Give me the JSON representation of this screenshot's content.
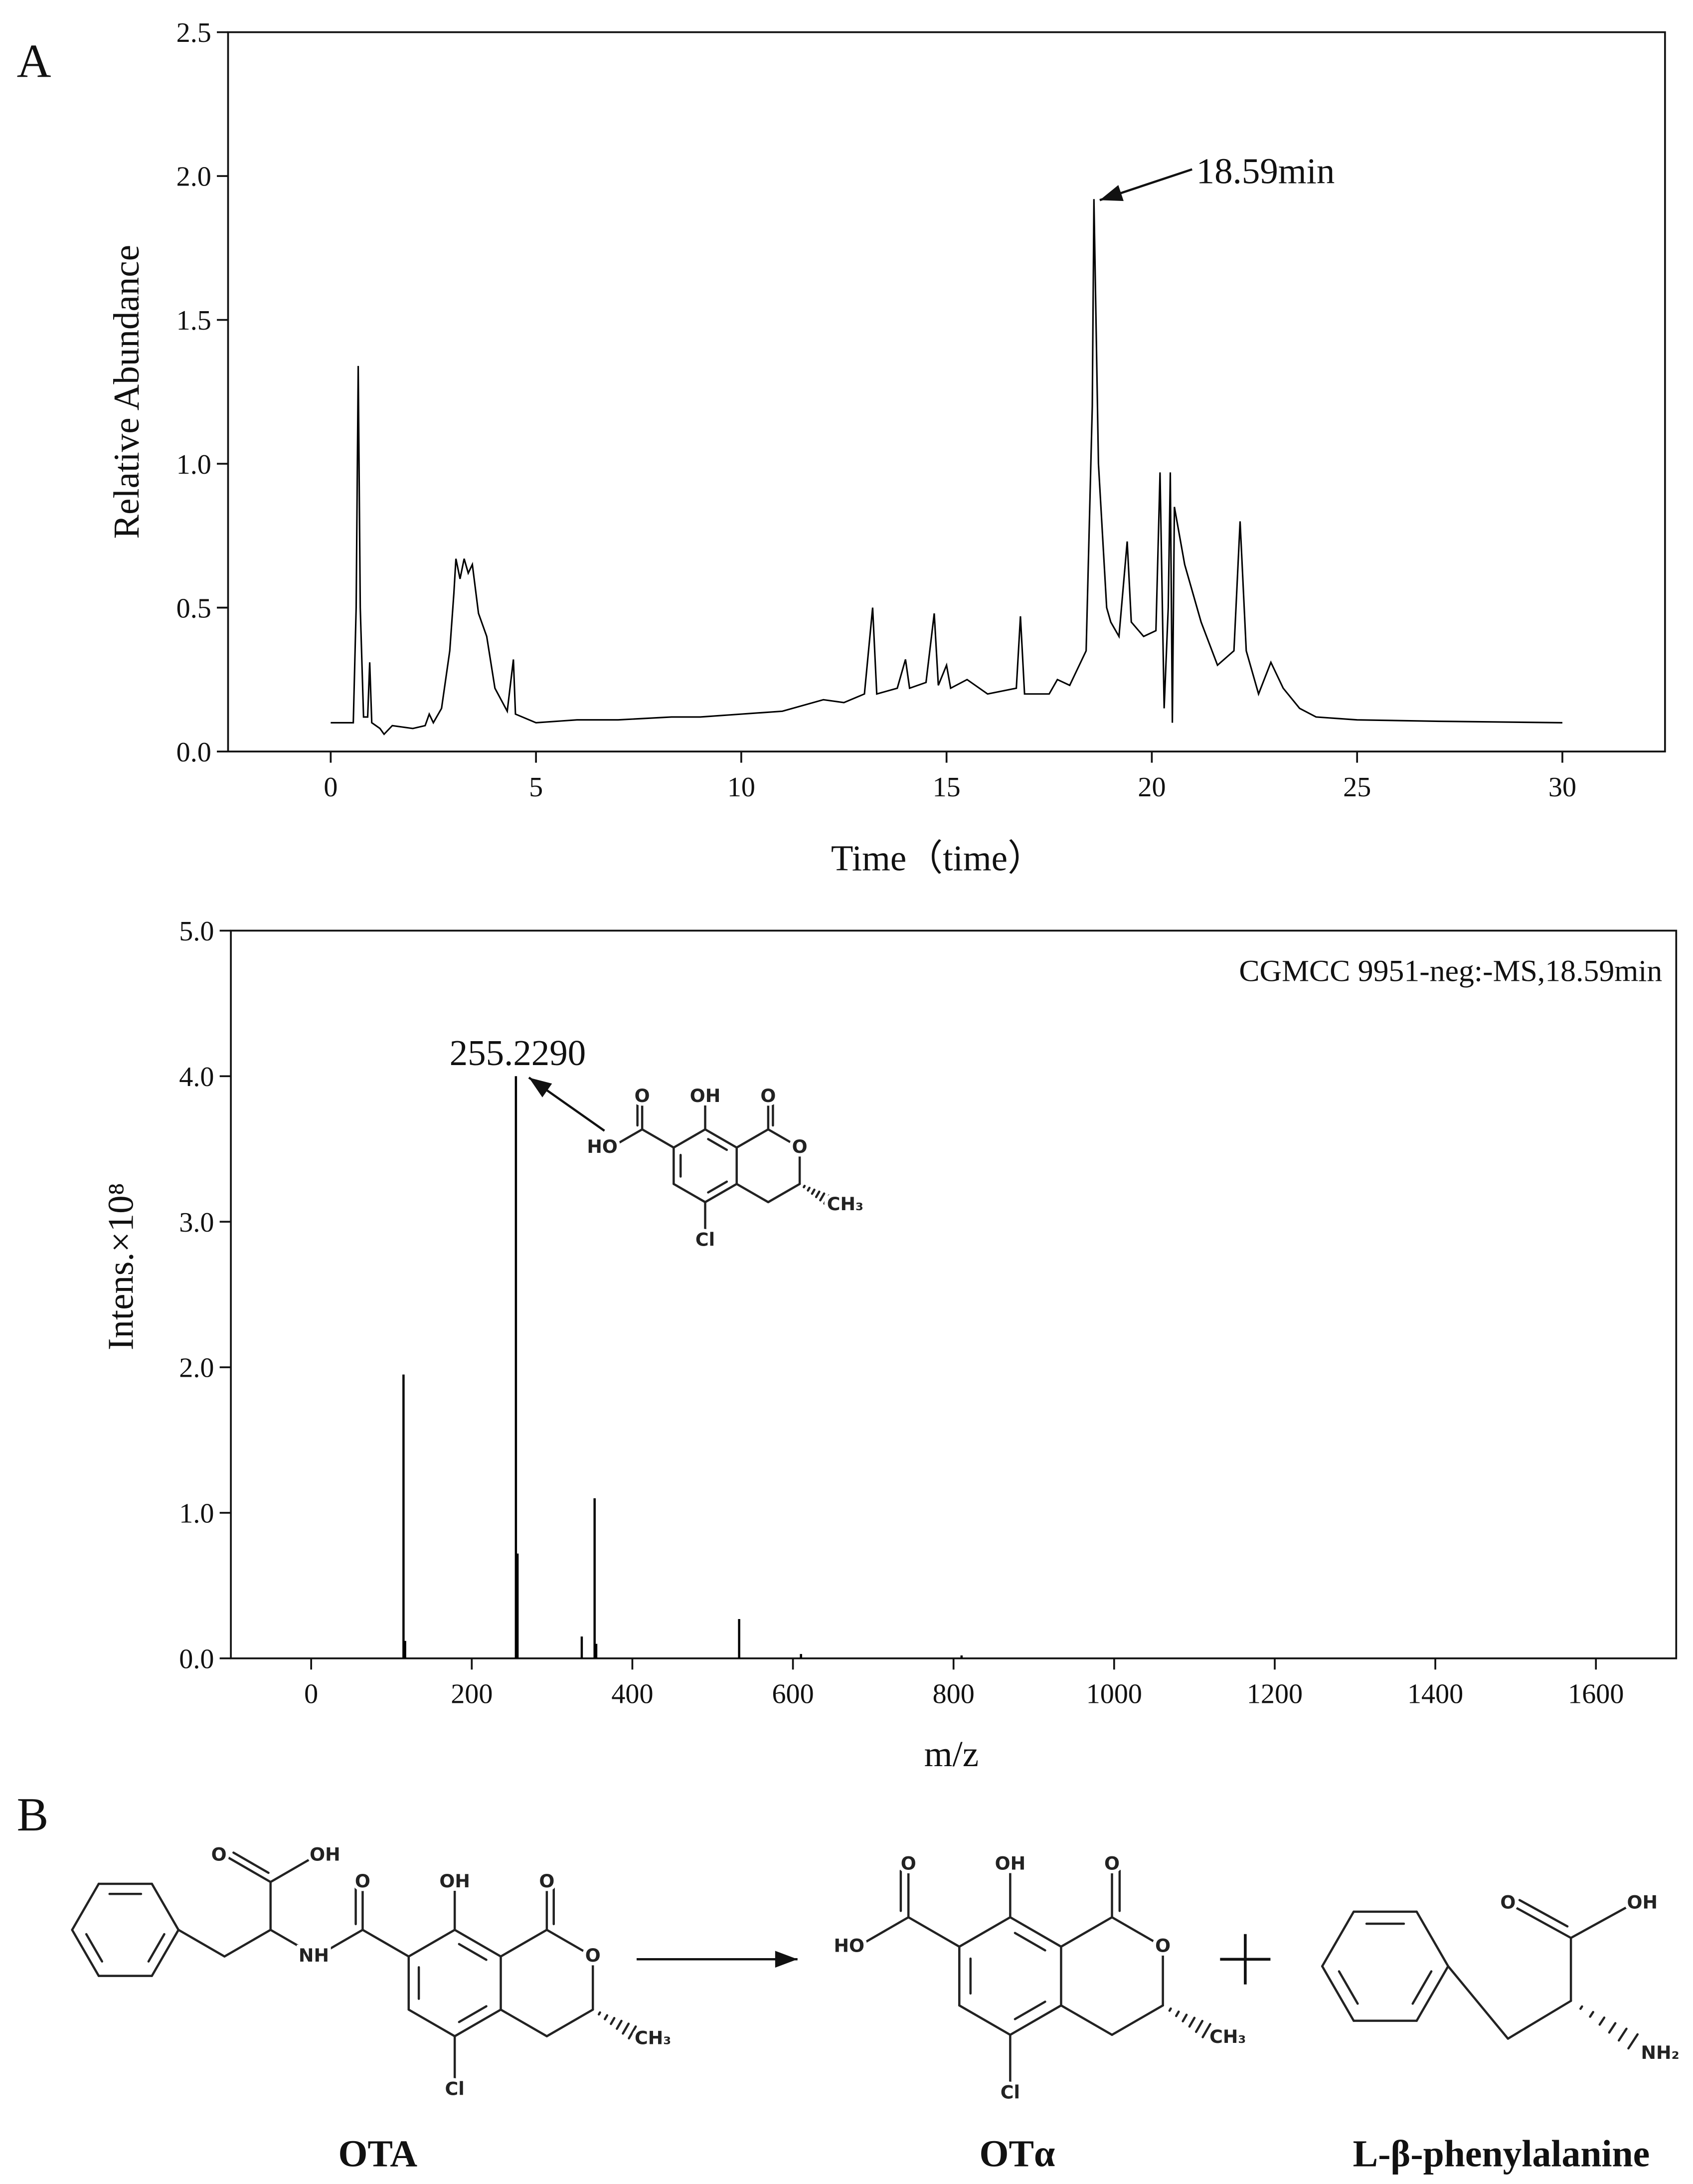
{
  "panels": {
    "a": "A",
    "b": "B"
  },
  "chart_data": [
    {
      "type": "line",
      "xlabel": "Time（time）",
      "ylabel": "Relative Abundance",
      "color": "#000000",
      "xlim": [
        -2.5,
        32.5
      ],
      "ylim": [
        0,
        2.5
      ],
      "xticks": [
        0,
        5,
        10,
        15,
        20,
        25,
        30
      ],
      "yticks": [
        {
          "value": 0,
          "label": "0.0"
        },
        0.5,
        {
          "value": 1,
          "label": "1.0"
        },
        1.5,
        {
          "value": 2,
          "label": "2.0"
        },
        2.5
      ],
      "annotations": [
        "18.59min"
      ],
      "x": [
        0,
        0.55,
        0.62,
        0.67,
        0.72,
        0.8,
        0.9,
        0.95,
        1.0,
        1.2,
        1.3,
        1.5,
        2.0,
        2.3,
        2.4,
        2.5,
        2.7,
        2.9,
        3.0,
        3.05,
        3.15,
        3.25,
        3.35,
        3.45,
        3.6,
        3.8,
        4.0,
        4.3,
        4.45,
        4.5,
        5,
        6,
        7,
        8.3,
        9,
        10,
        11,
        12,
        12.5,
        13,
        13.2,
        13.3,
        13.8,
        14,
        14.1,
        14.5,
        14.7,
        14.8,
        15.0,
        15.1,
        15.5,
        16,
        16.7,
        16.8,
        16.9,
        17.5,
        17.7,
        18,
        18.4,
        18.55,
        18.59,
        18.7,
        18.9,
        19.0,
        19.2,
        19.4,
        19.5,
        19.8,
        20.1,
        20.2,
        20.3,
        20.4,
        20.45,
        20.5,
        20.55,
        20.8,
        21.2,
        21.6,
        22.0,
        22.15,
        22.3,
        22.6,
        22.9,
        23.2,
        23.6,
        24,
        25,
        27,
        30
      ],
      "values": [
        0.1,
        0.1,
        0.5,
        1.34,
        0.5,
        0.12,
        0.12,
        0.31,
        0.1,
        0.08,
        0.06,
        0.09,
        0.08,
        0.09,
        0.13,
        0.1,
        0.15,
        0.35,
        0.55,
        0.67,
        0.6,
        0.67,
        0.62,
        0.65,
        0.48,
        0.4,
        0.22,
        0.14,
        0.32,
        0.13,
        0.1,
        0.11,
        0.11,
        0.12,
        0.12,
        0.13,
        0.14,
        0.18,
        0.17,
        0.2,
        0.5,
        0.2,
        0.22,
        0.32,
        0.22,
        0.24,
        0.48,
        0.23,
        0.3,
        0.22,
        0.25,
        0.2,
        0.22,
        0.47,
        0.2,
        0.2,
        0.25,
        0.23,
        0.35,
        1.2,
        1.92,
        1.0,
        0.5,
        0.45,
        0.4,
        0.73,
        0.45,
        0.4,
        0.42,
        0.97,
        0.15,
        0.5,
        0.97,
        0.1,
        0.85,
        0.65,
        0.45,
        0.3,
        0.35,
        0.8,
        0.35,
        0.2,
        0.31,
        0.22,
        0.15,
        0.12,
        0.11,
        0.105,
        0.1
      ]
    },
    {
      "type": "bar",
      "xlabel": "m/z",
      "ylabel": "Intens.×10⁸",
      "color": "#000000",
      "xlim": [
        -100,
        1700
      ],
      "ylim": [
        0,
        5
      ],
      "xticks": [
        0,
        200,
        400,
        600,
        800,
        1000,
        1200,
        1400,
        1600
      ],
      "yticks": [
        {
          "value": 0,
          "label": "0.0"
        },
        {
          "value": 1,
          "label": "1.0"
        },
        {
          "value": 2,
          "label": "2.0"
        },
        {
          "value": 3,
          "label": "3.0"
        },
        {
          "value": 4,
          "label": "4.0"
        },
        {
          "value": 5,
          "label": "5.0"
        }
      ],
      "annotations": [
        "255.2290",
        "CGMCC 9951-neg:-MS,18.59min"
      ],
      "inset_atoms": [
        "OH",
        "O",
        "O",
        "HO",
        "O",
        "CH₃",
        "Cl"
      ],
      "x": [
        115,
        117,
        255,
        257,
        337,
        353,
        355,
        533,
        610,
        810
      ],
      "values": [
        1.95,
        0.12,
        4.0,
        0.72,
        0.15,
        1.1,
        0.1,
        0.27,
        0.03,
        0.02
      ]
    }
  ],
  "scheme": {
    "compounds": [
      {
        "name": "OTA",
        "atoms": [
          "OH",
          "O",
          "O",
          "NH",
          "O",
          "CH₃",
          "Cl",
          "O",
          "OH"
        ]
      },
      {
        "name": "OTα",
        "atoms": [
          "OH",
          "O",
          "O",
          "HO",
          "O",
          "CH₃",
          "Cl"
        ]
      },
      {
        "name": "L-β-phenylalanine",
        "atoms": [
          "O",
          "OH",
          "NH₂"
        ]
      }
    ]
  }
}
